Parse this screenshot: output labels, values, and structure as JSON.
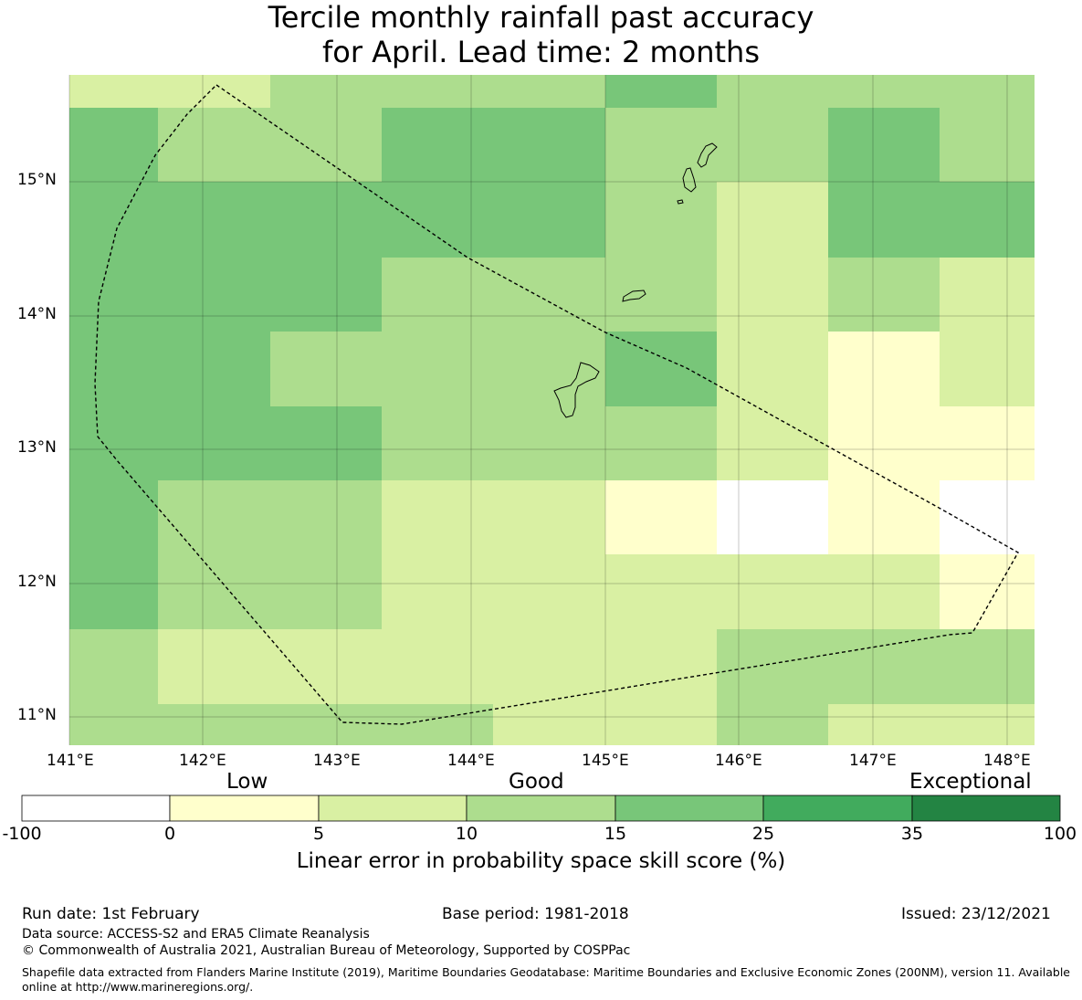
{
  "title_line1": "Tercile monthly rainfall past accuracy",
  "title_line2": "for April. Lead time: 2 months",
  "colors": {
    "white": "#ffffff",
    "c0_5": "#ffffcc",
    "c5_10": "#d9f0a3",
    "c10_15": "#addd8e",
    "c15_25": "#78c679",
    "c25_35": "#41ab5d",
    "c35_100": "#238443"
  },
  "lat_labels": [
    "15°N",
    "14°N",
    "13°N",
    "12°N",
    "11°N"
  ],
  "lon_labels": [
    "141°E",
    "142°E",
    "143°E",
    "144°E",
    "145°E",
    "146°E",
    "147°E",
    "148°E"
  ],
  "legend": {
    "categories": [
      "Low",
      "Good",
      "Exceptional"
    ],
    "ticks": [
      "-100",
      "0",
      "5",
      "10",
      "15",
      "25",
      "35",
      "100"
    ],
    "title": "Linear error in probability space skill score (%)"
  },
  "footer": {
    "run_date": "Run date: 1st February",
    "base_period": "Base period: 1981-2018",
    "issued": "Issued: 23/12/2021",
    "data_source": "Data source: ACCESS-S2 and ERA5 Climate Reanalysis",
    "copyright": "© Commonwealth of Australia 2021, Australian Bureau of Meteorology, Supported by COSPPac",
    "shapefile": "Shapefile data extracted from Flanders Marine Institute (2019), Maritime Boundaries Geodatabase: Maritime Boundaries and Exclusive Economic Zones (200NM), version 11. Available online at http://www.marineregions.org/."
  }
}
